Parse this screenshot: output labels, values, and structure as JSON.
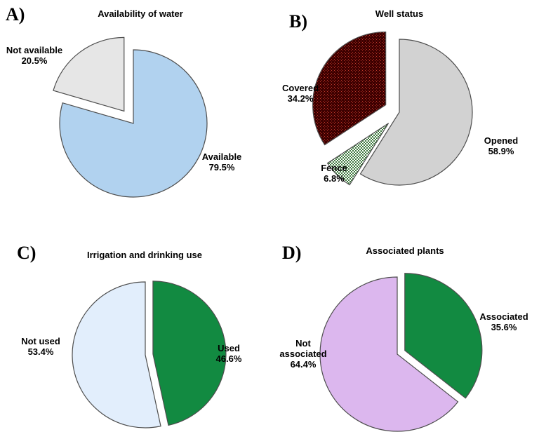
{
  "chart_data": [
    {
      "type": "pie",
      "panel": "A)",
      "title": "Availability of water",
      "slices": [
        {
          "name": "Available",
          "percent": "79.5%",
          "value": 79.5,
          "color": "#b1d2ef",
          "pattern": "none",
          "exploded": false
        },
        {
          "name": "Not available",
          "percent": "20.5%",
          "value": 20.5,
          "color": "#e6e6e6",
          "pattern": "none",
          "exploded": true
        }
      ]
    },
    {
      "type": "pie",
      "panel": "B)",
      "title": "Well status",
      "slices": [
        {
          "name": "Opened",
          "percent": "58.9%",
          "value": 58.9,
          "color": "#d2d2d2",
          "pattern": "none",
          "exploded": false
        },
        {
          "name": "Fence",
          "percent": "6.8%",
          "value": 6.8,
          "color": "#3f7a3f",
          "pattern": "dots-green",
          "exploded": true
        },
        {
          "name": "Covered",
          "percent": "34.2%",
          "value": 34.2,
          "color": "#4a0000",
          "pattern": "grid-red",
          "exploded": true
        }
      ]
    },
    {
      "type": "pie",
      "panel": "C)",
      "title": "Irrigation and drinking use",
      "slices": [
        {
          "name": "Used",
          "percent": "46.6%",
          "value": 46.6,
          "color": "#128a41",
          "pattern": "none",
          "exploded": true
        },
        {
          "name": "Not used",
          "percent": "53.4%",
          "value": 53.4,
          "color": "#e2eefc",
          "pattern": "none",
          "exploded": false
        }
      ]
    },
    {
      "type": "pie",
      "panel": "D)",
      "title": "Associated plants",
      "slices": [
        {
          "name": "Associated",
          "percent": "35.6%",
          "value": 35.6,
          "color": "#128a41",
          "pattern": "none",
          "exploded": true
        },
        {
          "name": "Not associated",
          "percent": "64.4%",
          "value": 64.4,
          "color": "#dcb7ee",
          "pattern": "none",
          "exploded": false
        }
      ]
    }
  ]
}
